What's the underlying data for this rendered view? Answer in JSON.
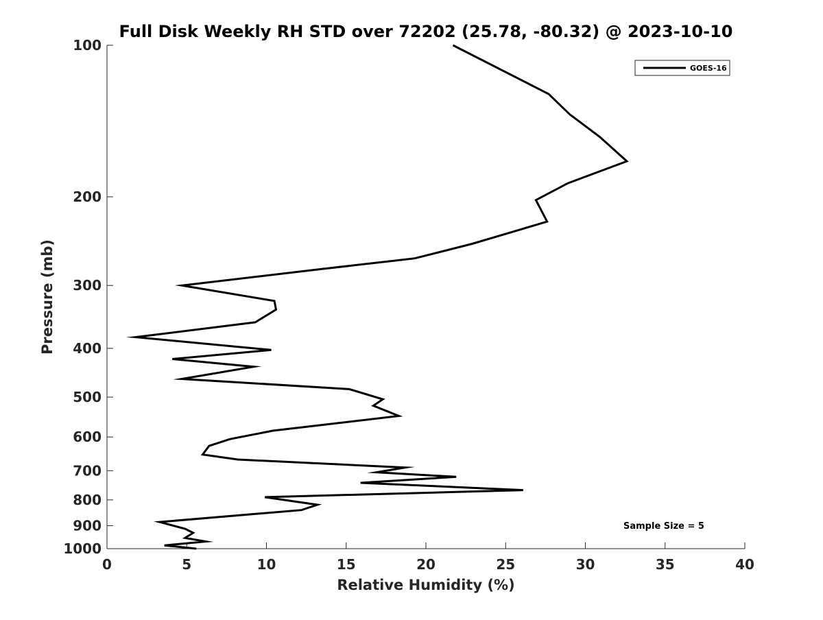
{
  "chart_data": {
    "type": "line",
    "title": "Full Disk Weekly RH STD over 72202 (25.78, -80.32) @ 2023-10-10",
    "xlabel": "Relative Humidity (%)",
    "ylabel": "Pressure (mb)",
    "xlim": [
      0,
      40
    ],
    "ylim": [
      1000,
      100
    ],
    "yscale": "log",
    "y_reversed": true,
    "grid": false,
    "legend_position": "top-right",
    "x_ticks": [
      0,
      5,
      10,
      15,
      20,
      25,
      30,
      35,
      40
    ],
    "y_ticks": [
      100,
      200,
      300,
      400,
      500,
      600,
      700,
      800,
      900,
      1000
    ],
    "annotation": "Sample Size = 5",
    "series": [
      {
        "name": "GOES-16",
        "color": "#000000",
        "x": [
          21.7,
          27.7,
          29.0,
          30.9,
          32.6,
          28.9,
          26.9,
          27.6,
          22.9,
          19.3,
          13.6,
          4.7,
          10.5,
          10.6,
          9.3,
          1.8,
          10.3,
          4.1,
          9.2,
          4.7,
          15.2,
          17.3,
          16.7,
          18.3,
          10.4,
          7.7,
          6.4,
          6.0,
          8.2,
          18.7,
          16.9,
          21.9,
          15.9,
          26.1,
          9.9,
          13.2,
          12.2,
          3.3,
          4.9,
          5.4,
          4.9,
          6.2,
          3.6,
          5.6
        ],
        "y": [
          100,
          125,
          137,
          152,
          170,
          188,
          203,
          224,
          248,
          265,
          278,
          300,
          322,
          335,
          355,
          380,
          403,
          420,
          435,
          460,
          482,
          505,
          520,
          545,
          583,
          606,
          625,
          650,
          665,
          690,
          705,
          720,
          740,
          765,
          790,
          818,
          838,
          885,
          913,
          930,
          952,
          968,
          985,
          1000
        ]
      }
    ]
  }
}
